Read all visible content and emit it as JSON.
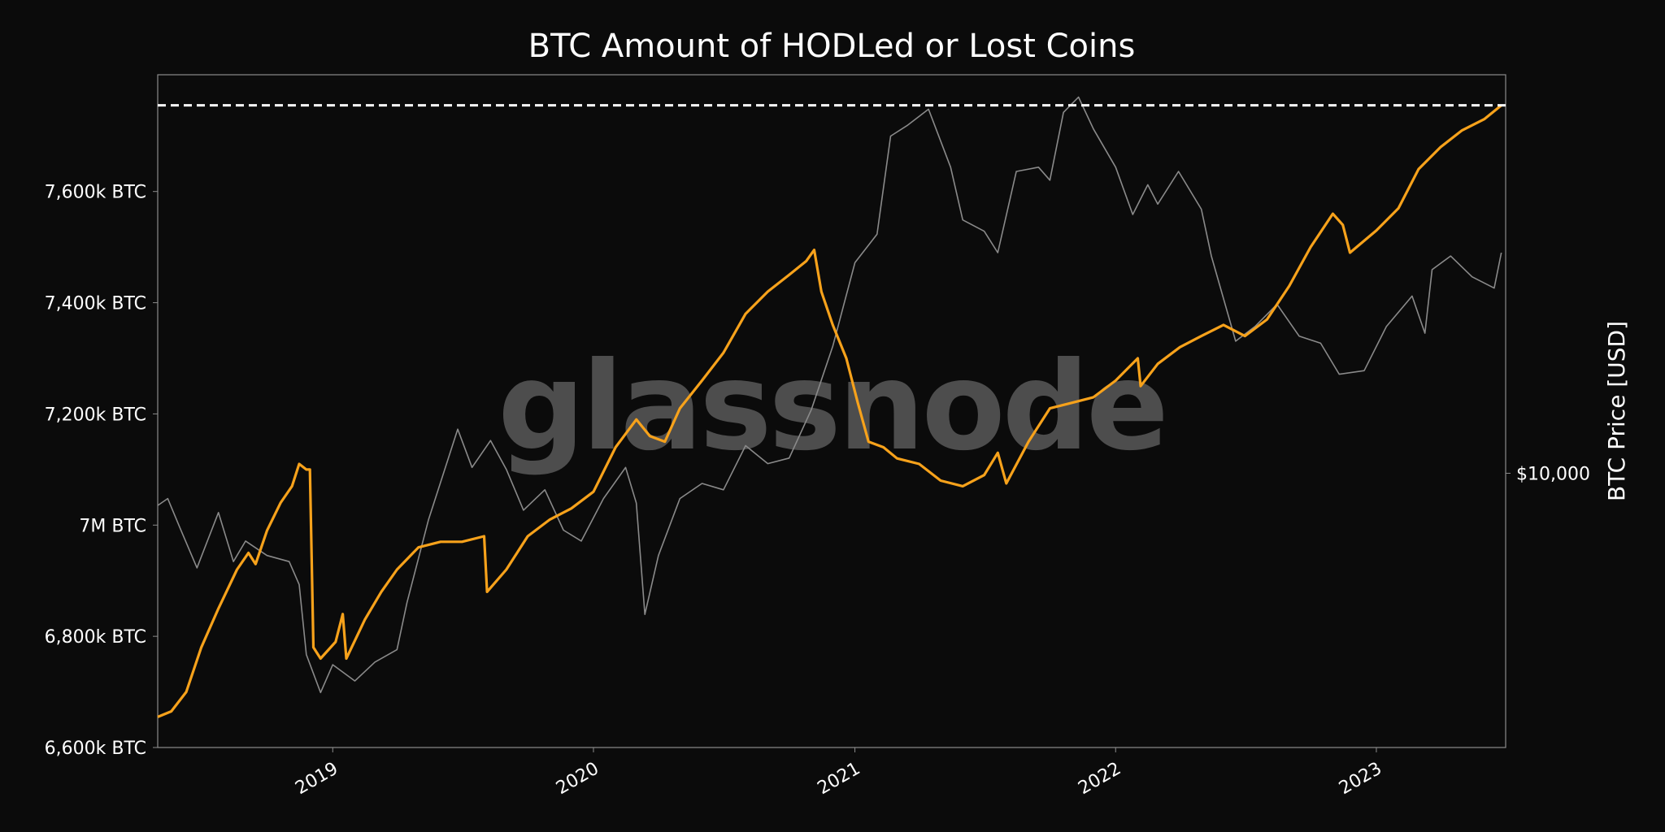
{
  "chart_data": {
    "type": "line",
    "title": "BTC Amount of HODLed or Lost Coins",
    "watermark": "glassnode",
    "y_label_right": "BTC Price [USD]",
    "x_ticks": [
      {
        "date": "2019-01-01",
        "label": "2019"
      },
      {
        "date": "2020-01-01",
        "label": "2020"
      },
      {
        "date": "2021-01-01",
        "label": "2021"
      },
      {
        "date": "2022-01-01",
        "label": "2022"
      },
      {
        "date": "2023-01-01",
        "label": "2023"
      }
    ],
    "x_range": [
      "2018-05-01",
      "2023-07-01"
    ],
    "y_left": {
      "range": [
        6600000,
        7810000
      ],
      "ticks": [
        {
          "value": 6600000,
          "label": "6,600k BTC"
        },
        {
          "value": 6800000,
          "label": "6,800k BTC"
        },
        {
          "value": 7000000,
          "label": "7M BTC"
        },
        {
          "value": 7200000,
          "label": "7,200k BTC"
        },
        {
          "value": 7400000,
          "label": "7,400k BTC"
        },
        {
          "value": 7600000,
          "label": "7,600k BTC"
        }
      ]
    },
    "y_right": {
      "scale": "log",
      "range": [
        2500,
        75000
      ],
      "ticks": [
        {
          "value": 10000,
          "label": "$10,000"
        }
      ]
    },
    "ath_line": {
      "value": 7755000,
      "style": "dashed",
      "color": "#ffffff"
    },
    "series": [
      {
        "name": "HODLed or Lost Coins",
        "axis": "left",
        "color": "#f7a21b",
        "points": [
          [
            "2018-05-01",
            6655000
          ],
          [
            "2018-05-20",
            6665000
          ],
          [
            "2018-06-10",
            6700000
          ],
          [
            "2018-07-01",
            6780000
          ],
          [
            "2018-07-25",
            6850000
          ],
          [
            "2018-08-20",
            6920000
          ],
          [
            "2018-09-05",
            6950000
          ],
          [
            "2018-09-15",
            6930000
          ],
          [
            "2018-10-01",
            6990000
          ],
          [
            "2018-10-20",
            7040000
          ],
          [
            "2018-11-05",
            7070000
          ],
          [
            "2018-11-15",
            7110000
          ],
          [
            "2018-11-25",
            7100000
          ],
          [
            "2018-11-30",
            7100000
          ],
          [
            "2018-12-05",
            6780000
          ],
          [
            "2018-12-15",
            6760000
          ],
          [
            "2019-01-05",
            6790000
          ],
          [
            "2019-01-15",
            6840000
          ],
          [
            "2019-01-20",
            6760000
          ],
          [
            "2019-02-15",
            6830000
          ],
          [
            "2019-03-10",
            6880000
          ],
          [
            "2019-04-01",
            6920000
          ],
          [
            "2019-05-01",
            6960000
          ],
          [
            "2019-06-01",
            6970000
          ],
          [
            "2019-07-01",
            6970000
          ],
          [
            "2019-08-01",
            6980000
          ],
          [
            "2019-08-05",
            6880000
          ],
          [
            "2019-09-01",
            6920000
          ],
          [
            "2019-10-01",
            6980000
          ],
          [
            "2019-11-01",
            7010000
          ],
          [
            "2019-12-01",
            7030000
          ],
          [
            "2020-01-01",
            7060000
          ],
          [
            "2020-02-01",
            7140000
          ],
          [
            "2020-03-01",
            7190000
          ],
          [
            "2020-03-20",
            7160000
          ],
          [
            "2020-04-10",
            7150000
          ],
          [
            "2020-05-01",
            7210000
          ],
          [
            "2020-06-01",
            7260000
          ],
          [
            "2020-07-01",
            7310000
          ],
          [
            "2020-08-01",
            7380000
          ],
          [
            "2020-09-01",
            7420000
          ],
          [
            "2020-10-01",
            7450000
          ],
          [
            "2020-10-25",
            7475000
          ],
          [
            "2020-11-05",
            7495000
          ],
          [
            "2020-11-15",
            7420000
          ],
          [
            "2020-12-01",
            7360000
          ],
          [
            "2020-12-20",
            7300000
          ],
          [
            "2021-01-05",
            7220000
          ],
          [
            "2021-01-20",
            7150000
          ],
          [
            "2021-02-10",
            7140000
          ],
          [
            "2021-03-01",
            7120000
          ],
          [
            "2021-04-01",
            7110000
          ],
          [
            "2021-05-01",
            7080000
          ],
          [
            "2021-06-01",
            7070000
          ],
          [
            "2021-07-01",
            7090000
          ],
          [
            "2021-07-20",
            7130000
          ],
          [
            "2021-08-01",
            7075000
          ],
          [
            "2021-09-01",
            7150000
          ],
          [
            "2021-10-01",
            7210000
          ],
          [
            "2021-11-01",
            7220000
          ],
          [
            "2021-12-01",
            7230000
          ],
          [
            "2022-01-01",
            7260000
          ],
          [
            "2022-02-01",
            7300000
          ],
          [
            "2022-02-05",
            7250000
          ],
          [
            "2022-03-01",
            7290000
          ],
          [
            "2022-04-01",
            7320000
          ],
          [
            "2022-05-01",
            7340000
          ],
          [
            "2022-06-01",
            7360000
          ],
          [
            "2022-07-01",
            7340000
          ],
          [
            "2022-08-01",
            7370000
          ],
          [
            "2022-09-01",
            7430000
          ],
          [
            "2022-10-01",
            7500000
          ],
          [
            "2022-11-01",
            7560000
          ],
          [
            "2022-11-15",
            7540000
          ],
          [
            "2022-11-25",
            7490000
          ],
          [
            "2023-01-01",
            7530000
          ],
          [
            "2023-02-01",
            7570000
          ],
          [
            "2023-03-01",
            7640000
          ],
          [
            "2023-04-01",
            7680000
          ],
          [
            "2023-05-01",
            7710000
          ],
          [
            "2023-06-01",
            7730000
          ],
          [
            "2023-06-25",
            7755000
          ]
        ]
      },
      {
        "name": "BTC Price [USD]",
        "axis": "right",
        "color": "#8a8a8a",
        "points": [
          [
            "2018-05-01",
            8500
          ],
          [
            "2018-05-15",
            8800
          ],
          [
            "2018-06-01",
            7600
          ],
          [
            "2018-06-25",
            6200
          ],
          [
            "2018-07-25",
            8200
          ],
          [
            "2018-08-15",
            6400
          ],
          [
            "2018-09-01",
            7100
          ],
          [
            "2018-10-01",
            6600
          ],
          [
            "2018-11-01",
            6400
          ],
          [
            "2018-11-15",
            5700
          ],
          [
            "2018-11-25",
            4000
          ],
          [
            "2018-12-15",
            3300
          ],
          [
            "2019-01-01",
            3800
          ],
          [
            "2019-02-01",
            3500
          ],
          [
            "2019-03-01",
            3850
          ],
          [
            "2019-04-01",
            4100
          ],
          [
            "2019-04-15",
            5200
          ],
          [
            "2019-05-15",
            7900
          ],
          [
            "2019-06-25",
            12500
          ],
          [
            "2019-07-15",
            10300
          ],
          [
            "2019-08-10",
            11800
          ],
          [
            "2019-09-01",
            10200
          ],
          [
            "2019-09-25",
            8300
          ],
          [
            "2019-10-25",
            9200
          ],
          [
            "2019-11-20",
            7500
          ],
          [
            "2019-12-15",
            7100
          ],
          [
            "2020-01-15",
            8800
          ],
          [
            "2020-02-15",
            10300
          ],
          [
            "2020-03-01",
            8600
          ],
          [
            "2020-03-13",
            4900
          ],
          [
            "2020-04-01",
            6600
          ],
          [
            "2020-05-01",
            8800
          ],
          [
            "2020-06-01",
            9500
          ],
          [
            "2020-07-01",
            9200
          ],
          [
            "2020-08-01",
            11500
          ],
          [
            "2020-09-01",
            10500
          ],
          [
            "2020-10-01",
            10800
          ],
          [
            "2020-11-01",
            13800
          ],
          [
            "2020-12-01",
            19000
          ],
          [
            "2021-01-01",
            29000
          ],
          [
            "2021-02-01",
            33500
          ],
          [
            "2021-02-20",
            55000
          ],
          [
            "2021-03-15",
            58000
          ],
          [
            "2021-04-14",
            63000
          ],
          [
            "2021-05-15",
            47000
          ],
          [
            "2021-06-01",
            36000
          ],
          [
            "2021-07-01",
            34000
          ],
          [
            "2021-07-20",
            30500
          ],
          [
            "2021-08-15",
            46000
          ],
          [
            "2021-09-15",
            47000
          ],
          [
            "2021-10-01",
            44000
          ],
          [
            "2021-10-20",
            62000
          ],
          [
            "2021-11-10",
            67000
          ],
          [
            "2021-12-01",
            57000
          ],
          [
            "2022-01-01",
            47000
          ],
          [
            "2022-01-25",
            37000
          ],
          [
            "2022-02-15",
            43000
          ],
          [
            "2022-03-01",
            39000
          ],
          [
            "2022-03-30",
            46000
          ],
          [
            "2022-05-01",
            38000
          ],
          [
            "2022-05-15",
            30000
          ],
          [
            "2022-06-18",
            19500
          ],
          [
            "2022-07-15",
            21000
          ],
          [
            "2022-08-15",
            23500
          ],
          [
            "2022-09-15",
            20000
          ],
          [
            "2022-10-15",
            19300
          ],
          [
            "2022-11-10",
            16500
          ],
          [
            "2022-12-15",
            16800
          ],
          [
            "2023-01-15",
            21000
          ],
          [
            "2023-02-20",
            24500
          ],
          [
            "2023-03-10",
            20300
          ],
          [
            "2023-03-20",
            28000
          ],
          [
            "2023-04-15",
            30000
          ],
          [
            "2023-05-15",
            27000
          ],
          [
            "2023-06-15",
            25500
          ],
          [
            "2023-06-25",
            30500
          ]
        ]
      }
    ]
  }
}
